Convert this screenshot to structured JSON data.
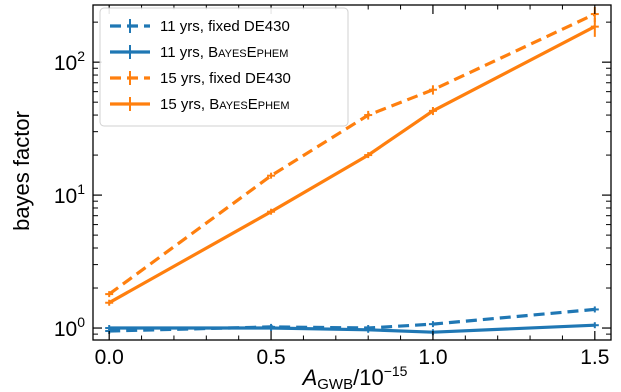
{
  "chart_data": {
    "type": "line",
    "ylabel": "bayes factor",
    "xlabel_italic": "A",
    "xlabel_sub": "GWB",
    "xlabel_rest": "/10",
    "xlabel_exp": "−15",
    "xlim": [
      -0.05,
      1.55
    ],
    "ylim_log10": [
      -0.09,
      2.43
    ],
    "y_scale": "log",
    "x_ticks": [
      0.0,
      0.5,
      1.0,
      1.5
    ],
    "x_tick_labels": [
      "0.0",
      "0.5",
      "1.0",
      "1.5"
    ],
    "y_ticks_major": [
      1,
      10,
      100
    ],
    "y_tick_bases": [
      "10",
      "10",
      "10"
    ],
    "y_tick_exps": [
      "0",
      "1",
      "2"
    ],
    "legend_position": "top-left",
    "series": [
      {
        "name": "11 yrs, fixed DE430",
        "color": "#1f77b4",
        "dash": true,
        "x": [
          0.0,
          0.5,
          0.8,
          1.0,
          1.5
        ],
        "y": [
          0.95,
          1.02,
          1.0,
          1.07,
          1.38
        ],
        "yerr": [
          0.02,
          0.02,
          0.02,
          0.02,
          0.03
        ]
      },
      {
        "name_prefix": "11 yrs, ",
        "name_sc": "BayesEphem",
        "color": "#1f77b4",
        "dash": false,
        "x": [
          0.0,
          0.5,
          0.8,
          1.0,
          1.5
        ],
        "y": [
          1.0,
          1.0,
          0.97,
          0.93,
          1.05
        ],
        "yerr": [
          0.02,
          0.02,
          0.02,
          0.02,
          0.02
        ]
      },
      {
        "name": "15 yrs, fixed DE430",
        "color": "#ff7f0e",
        "dash": true,
        "x": [
          0.0,
          0.5,
          0.8,
          1.0,
          1.5
        ],
        "y": [
          1.8,
          14.0,
          40.0,
          62.0,
          230.0
        ],
        "yerr": [
          0.05,
          0.4,
          3.0,
          5.0,
          30.0
        ]
      },
      {
        "name_prefix": "15 yrs, ",
        "name_sc": "BayesEphem",
        "color": "#ff7f0e",
        "dash": false,
        "x": [
          0.0,
          0.5,
          0.8,
          1.0,
          1.5
        ],
        "y": [
          1.55,
          7.5,
          20.0,
          43.0,
          185.0
        ],
        "yerr": [
          0.07,
          0.2,
          0.6,
          3.0,
          30.0
        ]
      }
    ]
  }
}
